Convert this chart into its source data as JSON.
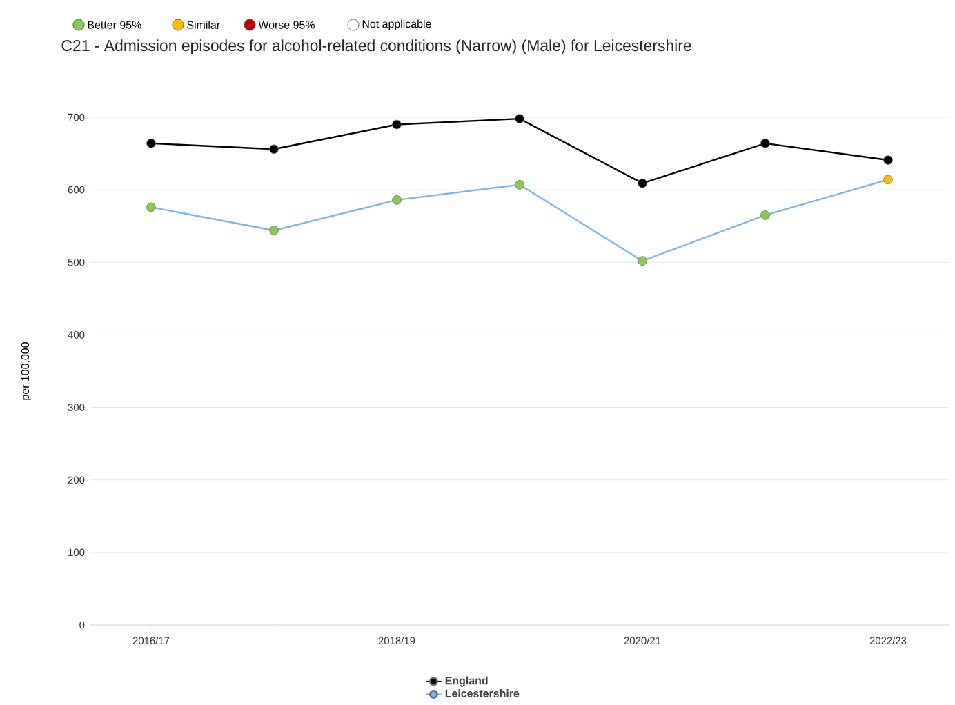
{
  "chart_data": {
    "type": "line",
    "title": "C21 - Admission episodes for alcohol-related conditions (Narrow) (Male) for Leicestershire",
    "ylabel": "per 100,000",
    "annotations": [
      "Better 95%",
      "Similar",
      "Worse 95%",
      "Not applicable"
    ],
    "categories": [
      "2016/17",
      null,
      "2018/19",
      null,
      "2020/21",
      null,
      "2022/23"
    ],
    "series": [
      {
        "name": "England",
        "color": "#000000",
        "values": [
          664,
          656,
          690,
          698,
          609,
          664,
          641
        ]
      },
      {
        "name": "Leicestershire",
        "color": "#7cb5ec",
        "colors": [
          "#8cc950",
          "#8cc950",
          "#8cc950",
          "#8cc950",
          "#8cc950",
          "#8cc950",
          "#ffbf00"
        ],
        "values": [
          576,
          544,
          586,
          607,
          502,
          565,
          614
        ]
      }
    ],
    "ylim": [
      0,
      700
    ],
    "yticks": [
      0,
      100,
      200,
      300,
      400,
      500,
      600,
      700
    ],
    "grid": "y",
    "legend": "bottom",
    "marker": "circle",
    "line_style": "solid"
  }
}
